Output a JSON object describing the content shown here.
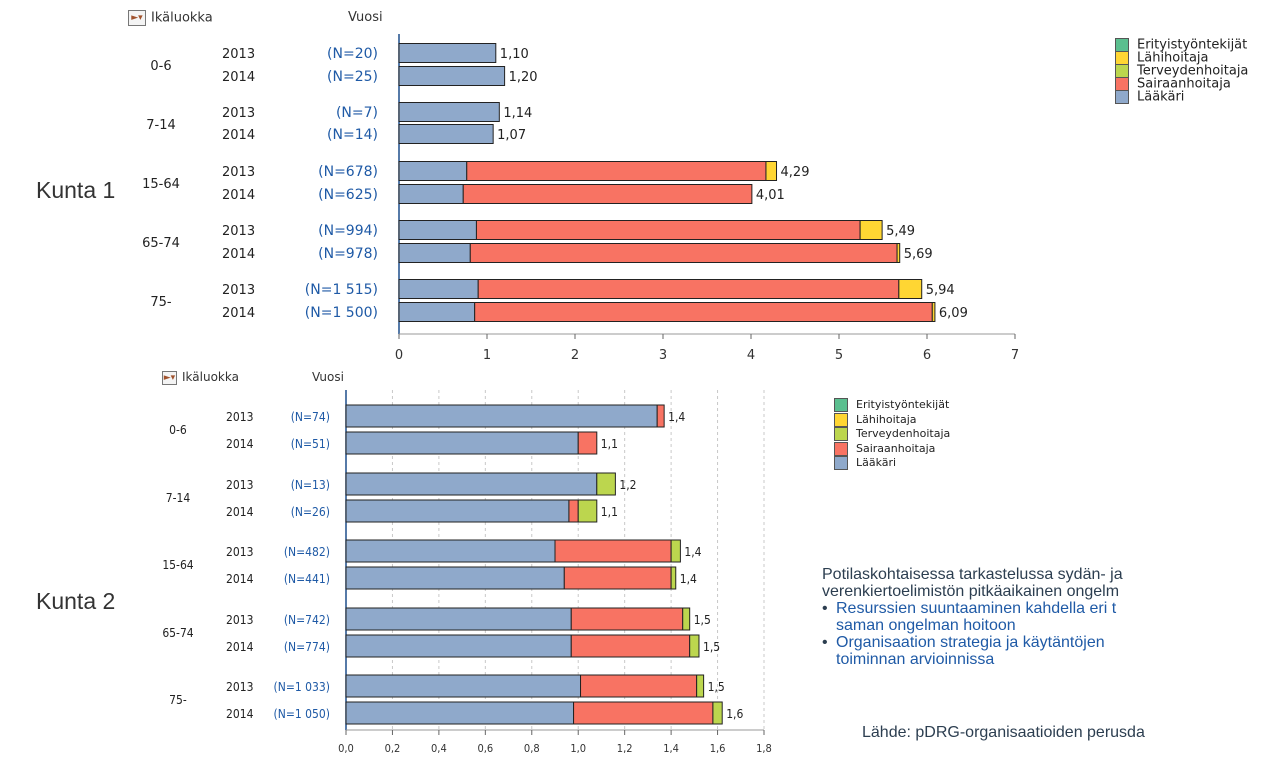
{
  "colors": {
    "Erityistyöntekijät": "#5bbf8f",
    "Lähihoitaja": "#ffd633",
    "Terveydenhoitaja": "#bcd64e",
    "Sairaanhoitaja": "#f87363",
    "Lääkäri": "#8fa9cb",
    "n_label": "#1f5aa6"
  },
  "icons": {
    "selector": "dropdown-selector-icon"
  },
  "labels": {
    "kunta1": "Kunta 1",
    "kunta2": "Kunta 2",
    "ikaluokka": "Ikäluokka",
    "vuosi": "Vuosi"
  },
  "note": {
    "intro": "Potilaskohtaisessa tarkastelussa sydän- ja",
    "intro2": "verenkiertoelimistön pitkäaikainen ongelm",
    "bullet1a": "Resurssien suuntaaminen kahdella eri t",
    "bullet1b": "saman ongelman hoitoon",
    "bullet2a": "Organisaation strategia ja käytäntöjen",
    "bullet2b": "toiminnan arvioinnissa",
    "source": "Lähde: pDRG-organisaatioiden perusda"
  },
  "chart_data": [
    {
      "type": "bar",
      "orientation": "horizontal",
      "stacked": true,
      "xlim": [
        0,
        7
      ],
      "xticks": [
        "0",
        "1",
        "2",
        "3",
        "4",
        "5",
        "6",
        "7"
      ],
      "legend": [
        "Erityistyöntekijät",
        "Lähihoitaja",
        "Terveydenhoitaja",
        "Sairaanhoitaja",
        "Lääkäri"
      ],
      "groups": [
        "0-6",
        "7-14",
        "15-64",
        "65-74",
        "75-"
      ],
      "rows": [
        {
          "group": "0-6",
          "year": "2013",
          "n": "(N=20)",
          "total": "1,10",
          "Lääkäri": 1.1,
          "Sairaanhoitaja": 0,
          "Terveydenhoitaja": 0,
          "Lähihoitaja": 0,
          "Erityistyöntekijät": 0
        },
        {
          "group": "0-6",
          "year": "2014",
          "n": "(N=25)",
          "total": "1,20",
          "Lääkäri": 1.2,
          "Sairaanhoitaja": 0,
          "Terveydenhoitaja": 0,
          "Lähihoitaja": 0,
          "Erityistyöntekijät": 0
        },
        {
          "group": "7-14",
          "year": "2013",
          "n": "(N=7)",
          "total": "1,14",
          "Lääkäri": 1.14,
          "Sairaanhoitaja": 0,
          "Terveydenhoitaja": 0,
          "Lähihoitaja": 0,
          "Erityistyöntekijät": 0
        },
        {
          "group": "7-14",
          "year": "2014",
          "n": "(N=14)",
          "total": "1,07",
          "Lääkäri": 1.07,
          "Sairaanhoitaja": 0,
          "Terveydenhoitaja": 0,
          "Lähihoitaja": 0,
          "Erityistyöntekijät": 0
        },
        {
          "group": "15-64",
          "year": "2013",
          "n": "(N=678)",
          "total": "4,29",
          "Lääkäri": 0.77,
          "Sairaanhoitaja": 3.4,
          "Terveydenhoitaja": 0,
          "Lähihoitaja": 0.12,
          "Erityistyöntekijät": 0
        },
        {
          "group": "15-64",
          "year": "2014",
          "n": "(N=625)",
          "total": "4,01",
          "Lääkäri": 0.73,
          "Sairaanhoitaja": 3.28,
          "Terveydenhoitaja": 0,
          "Lähihoitaja": 0,
          "Erityistyöntekijät": 0
        },
        {
          "group": "65-74",
          "year": "2013",
          "n": "(N=994)",
          "total": "5,49",
          "Lääkäri": 0.88,
          "Sairaanhoitaja": 4.36,
          "Terveydenhoitaja": 0,
          "Lähihoitaja": 0.25,
          "Erityistyöntekijät": 0
        },
        {
          "group": "65-74",
          "year": "2014",
          "n": "(N=978)",
          "total": "5,69",
          "Lääkäri": 0.81,
          "Sairaanhoitaja": 4.85,
          "Terveydenhoitaja": 0,
          "Lähihoitaja": 0.03,
          "Erityistyöntekijät": 0
        },
        {
          "group": "75-",
          "year": "2013",
          "n": "(N=1 515)",
          "total": "5,94",
          "Lääkäri": 0.9,
          "Sairaanhoitaja": 4.78,
          "Terveydenhoitaja": 0,
          "Lähihoitaja": 0.26,
          "Erityistyöntekijät": 0
        },
        {
          "group": "75-",
          "year": "2014",
          "n": "(N=1 500)",
          "total": "6,09",
          "Lääkäri": 0.86,
          "Sairaanhoitaja": 5.2,
          "Terveydenhoitaja": 0,
          "Lähihoitaja": 0.03,
          "Erityistyöntekijät": 0
        }
      ]
    },
    {
      "type": "bar",
      "orientation": "horizontal",
      "stacked": true,
      "xlim": [
        0,
        1.8
      ],
      "grid": true,
      "xticks": [
        "0,0",
        "0,2",
        "0,4",
        "0,6",
        "0,8",
        "1,0",
        "1,2",
        "1,4",
        "1,6",
        "1,8"
      ],
      "legend": [
        "Erityistyöntekijät",
        "Lähihoitaja",
        "Terveydenhoitaja",
        "Sairaanhoitaja",
        "Lääkäri"
      ],
      "groups": [
        "0-6",
        "7-14",
        "15-64",
        "65-74",
        "75-"
      ],
      "group_labels_visible": [
        "0-6",
        "7-14",
        "15-64",
        "65-74",
        "75-"
      ],
      "rows": [
        {
          "group": "0-6",
          "year": "2013",
          "n": "(N=74)",
          "total": "1,4",
          "Lääkäri": 1.34,
          "Sairaanhoitaja": 0.03,
          "Terveydenhoitaja": 0,
          "Lähihoitaja": 0,
          "Erityistyöntekijät": 0
        },
        {
          "group": "0-6",
          "year": "2014",
          "n": "(N=51)",
          "total": "1,1",
          "Lääkäri": 1.0,
          "Sairaanhoitaja": 0.08,
          "Terveydenhoitaja": 0,
          "Lähihoitaja": 0,
          "Erityistyöntekijät": 0
        },
        {
          "group": "7-14",
          "year": "2013",
          "n": "(N=13)",
          "total": "1,2",
          "Lääkäri": 1.08,
          "Sairaanhoitaja": 0,
          "Terveydenhoitaja": 0.08,
          "Lähihoitaja": 0,
          "Erityistyöntekijät": 0
        },
        {
          "group": "7-14",
          "year": "2014",
          "n": "(N=26)",
          "total": "1,1",
          "Lääkäri": 0.96,
          "Sairaanhoitaja": 0.04,
          "Terveydenhoitaja": 0.08,
          "Lähihoitaja": 0,
          "Erityistyöntekijät": 0
        },
        {
          "group": "15-64",
          "year": "2013",
          "n": "(N=482)",
          "total": "1,4",
          "Lääkäri": 0.9,
          "Sairaanhoitaja": 0.5,
          "Terveydenhoitaja": 0.04,
          "Lähihoitaja": 0,
          "Erityistyöntekijät": 0
        },
        {
          "group": "15-64",
          "year": "2014",
          "n": "(N=441)",
          "total": "1,4",
          "Lääkäri": 0.94,
          "Sairaanhoitaja": 0.46,
          "Terveydenhoitaja": 0.02,
          "Lähihoitaja": 0,
          "Erityistyöntekijät": 0
        },
        {
          "group": "65-74",
          "year": "2013",
          "n": "(N=742)",
          "total": "1,5",
          "Lääkäri": 0.97,
          "Sairaanhoitaja": 0.48,
          "Terveydenhoitaja": 0.03,
          "Lähihoitaja": 0,
          "Erityistyöntekijät": 0
        },
        {
          "group": "65-74",
          "year": "2014",
          "n": "(N=774)",
          "total": "1,5",
          "Lääkäri": 0.97,
          "Sairaanhoitaja": 0.51,
          "Terveydenhoitaja": 0.04,
          "Lähihoitaja": 0,
          "Erityistyöntekijät": 0
        },
        {
          "group": "75-",
          "year": "2013",
          "n": "(N=1 033)",
          "total": "1,5",
          "Lääkäri": 1.01,
          "Sairaanhoitaja": 0.5,
          "Terveydenhoitaja": 0.03,
          "Lähihoitaja": 0,
          "Erityistyöntekijät": 0
        },
        {
          "group": "75-",
          "year": "2014",
          "n": "(N=1 050)",
          "total": "1,6",
          "Lääkäri": 0.98,
          "Sairaanhoitaja": 0.6,
          "Terveydenhoitaja": 0.04,
          "Lähihoitaja": 0,
          "Erityistyöntekijät": 0
        }
      ]
    }
  ]
}
